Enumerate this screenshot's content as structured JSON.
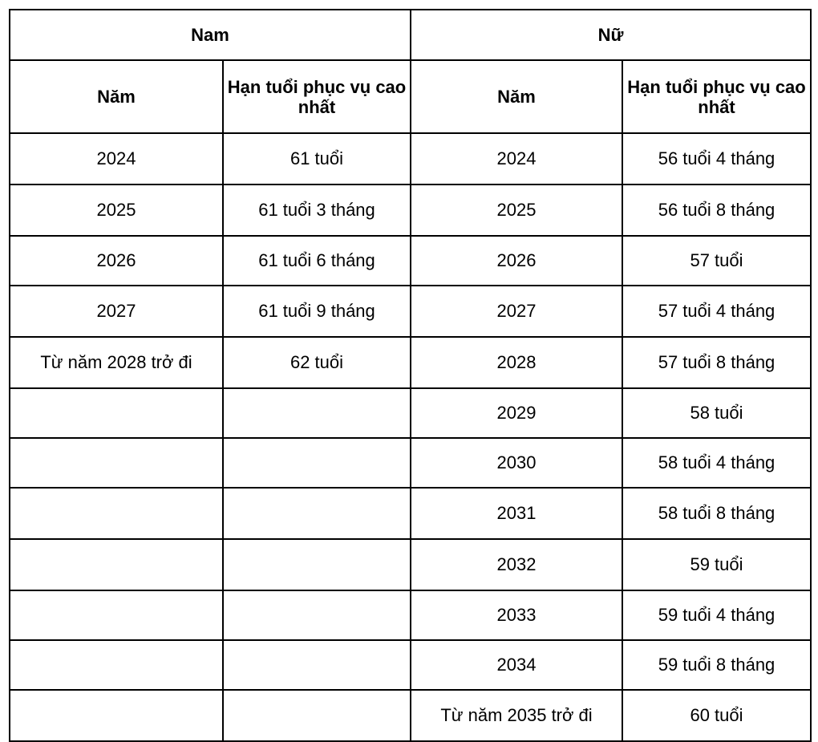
{
  "groups": {
    "male": "Nam",
    "female": "Nữ"
  },
  "headers": {
    "male_year": "Năm",
    "male_limit": "Hạn tuổi phục vụ cao nhất",
    "female_year": "Năm",
    "female_limit": "Hạn tuổi phục vụ cao nhất"
  },
  "rows": [
    {
      "male_year": "2024",
      "male_limit": "61 tuổi",
      "female_year": "2024",
      "female_limit": "56 tuổi 4 tháng"
    },
    {
      "male_year": "2025",
      "male_limit": "61 tuổi 3 tháng",
      "female_year": "2025",
      "female_limit": "56 tuổi 8 tháng"
    },
    {
      "male_year": "2026",
      "male_limit": "61 tuổi 6 tháng",
      "female_year": "2026",
      "female_limit": "57 tuổi"
    },
    {
      "male_year": "2027",
      "male_limit": "61 tuổi 9 tháng",
      "female_year": "2027",
      "female_limit": "57 tuổi 4 tháng"
    },
    {
      "male_year": "Từ năm 2028 trở đi",
      "male_limit": "62 tuổi",
      "female_year": "2028",
      "female_limit": "57 tuổi 8 tháng"
    },
    {
      "male_year": "",
      "male_limit": "",
      "female_year": "2029",
      "female_limit": "58 tuổi"
    },
    {
      "male_year": "",
      "male_limit": "",
      "female_year": "2030",
      "female_limit": "58 tuổi 4 tháng"
    },
    {
      "male_year": "",
      "male_limit": "",
      "female_year": "2031",
      "female_limit": "58 tuổi 8 tháng"
    },
    {
      "male_year": "",
      "male_limit": "",
      "female_year": "2032",
      "female_limit": "59 tuổi"
    },
    {
      "male_year": "",
      "male_limit": "",
      "female_year": "2033",
      "female_limit": "59 tuổi 4 tháng"
    },
    {
      "male_year": "",
      "male_limit": "",
      "female_year": "2034",
      "female_limit": "59 tuổi 8 tháng"
    },
    {
      "male_year": "",
      "male_limit": "",
      "female_year": "Từ năm 2035 trở đi",
      "female_limit": "60 tuổi"
    }
  ]
}
